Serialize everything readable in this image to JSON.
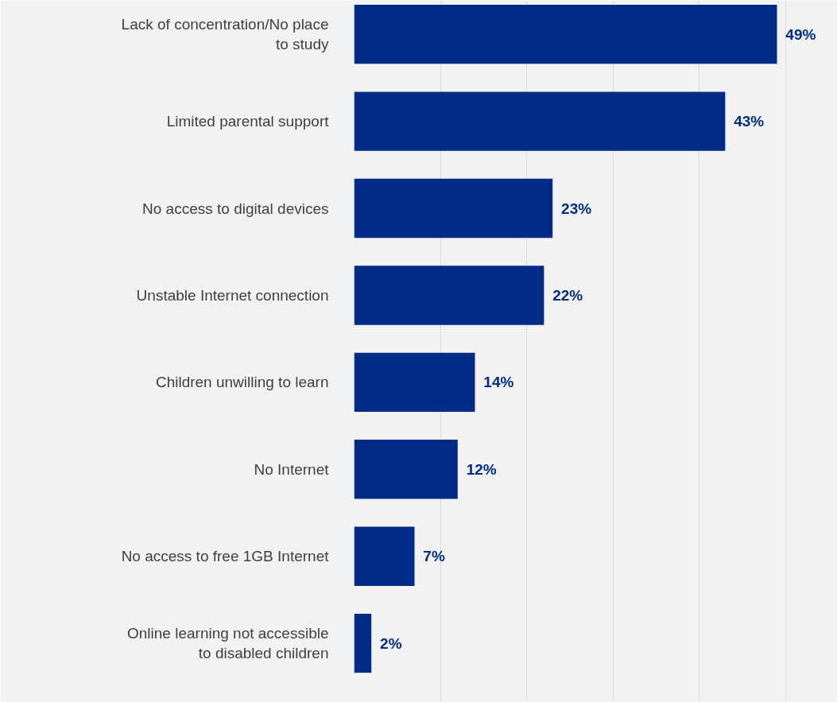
{
  "chart_data": {
    "type": "bar",
    "orientation": "horizontal",
    "categories": [
      "Lack of concentration/No place\nto study",
      "Limited parental support",
      "No access to digital devices",
      "Unstable Internet connection",
      "Children unwilling to learn",
      "No Internet",
      "No access to free 1GB Internet",
      "Online learning not accessible\nto disabled children"
    ],
    "values": [
      49,
      43,
      23,
      22,
      14,
      12,
      7,
      2
    ],
    "value_labels": [
      "49%",
      "43%",
      "23%",
      "22%",
      "14%",
      "12%",
      "7%",
      "2%"
    ],
    "color": "#002b87",
    "xlim": [
      0,
      56
    ],
    "xticks": [
      {
        "value": 0,
        "label": null
      },
      {
        "value": 10,
        "label": null
      },
      {
        "value": 20,
        "label": null
      },
      {
        "value": 30,
        "label": null
      },
      {
        "value": 40,
        "label": null
      },
      {
        "value": 50,
        "label": null
      }
    ],
    "grid": "x",
    "tick_labels": "y"
  }
}
